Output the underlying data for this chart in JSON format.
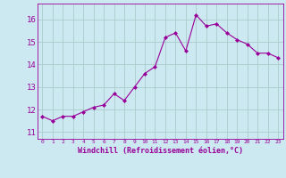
{
  "x": [
    0,
    1,
    2,
    3,
    4,
    5,
    6,
    7,
    8,
    9,
    10,
    11,
    12,
    13,
    14,
    15,
    16,
    17,
    18,
    19,
    20,
    21,
    22,
    23
  ],
  "y": [
    11.7,
    11.5,
    11.7,
    11.7,
    11.9,
    12.1,
    12.2,
    12.7,
    12.4,
    13.0,
    13.6,
    13.9,
    15.2,
    15.4,
    14.6,
    16.2,
    15.7,
    15.8,
    15.4,
    15.1,
    14.9,
    14.5,
    14.5,
    14.3
  ],
  "line_color": "#990099",
  "marker": "D",
  "marker_size": 2,
  "bg_color": "#cce8f0",
  "grid_color": "#aacccc",
  "xlabel": "Windchill (Refroidissement éolien,°C)",
  "xlabel_color": "#990099",
  "ylabel_ticks": [
    11,
    12,
    13,
    14,
    15,
    16
  ],
  "xtick_labels": [
    "0",
    "1",
    "2",
    "3",
    "4",
    "5",
    "6",
    "7",
    "8",
    "9",
    "10",
    "11",
    "12",
    "13",
    "14",
    "15",
    "16",
    "17",
    "18",
    "19",
    "20",
    "21",
    "22",
    "23"
  ],
  "ylim": [
    10.7,
    16.7
  ],
  "xlim": [
    -0.5,
    23.5
  ],
  "tick_color": "#990099",
  "spine_color": "#990099",
  "lw": 0.8
}
